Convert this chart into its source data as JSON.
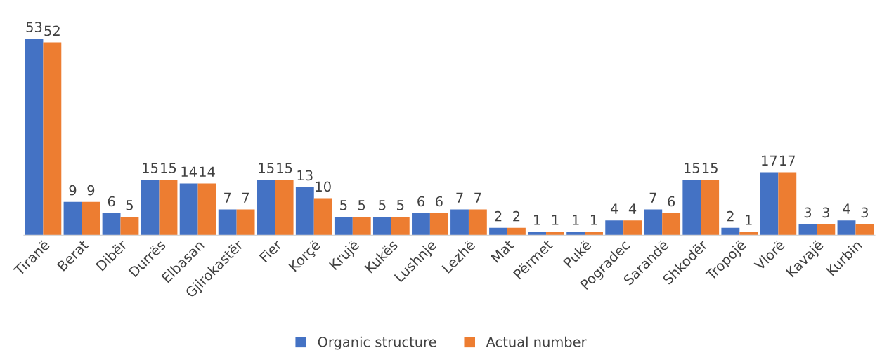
{
  "chart_data": {
    "type": "bar",
    "categories": [
      "Tiranë",
      "Berat",
      "Dibër",
      "Durrës",
      "Elbasan",
      "Gjirokastër",
      "Fier",
      "Korçë",
      "Krujë",
      "Kukës",
      "Lushnje",
      "Lezhë",
      "Mat",
      "Përmet",
      "Pukë",
      "Pogradec",
      "Sarandë",
      "Shkodër",
      "Tropojë",
      "Vlorë",
      "Kavajë",
      "Kurbin"
    ],
    "series": [
      {
        "name": "Organic structure",
        "color": "#4472c4",
        "values": [
          53,
          9,
          6,
          15,
          14,
          7,
          15,
          13,
          5,
          5,
          6,
          7,
          2,
          1,
          1,
          4,
          7,
          15,
          2,
          17,
          3,
          4
        ]
      },
      {
        "name": "Actual number",
        "color": "#ed7d31",
        "values": [
          52,
          9,
          5,
          15,
          14,
          7,
          15,
          10,
          5,
          5,
          6,
          7,
          2,
          1,
          1,
          4,
          6,
          15,
          1,
          17,
          3,
          3
        ]
      }
    ],
    "data_labels": true,
    "legend": "bottom",
    "grid": false
  }
}
